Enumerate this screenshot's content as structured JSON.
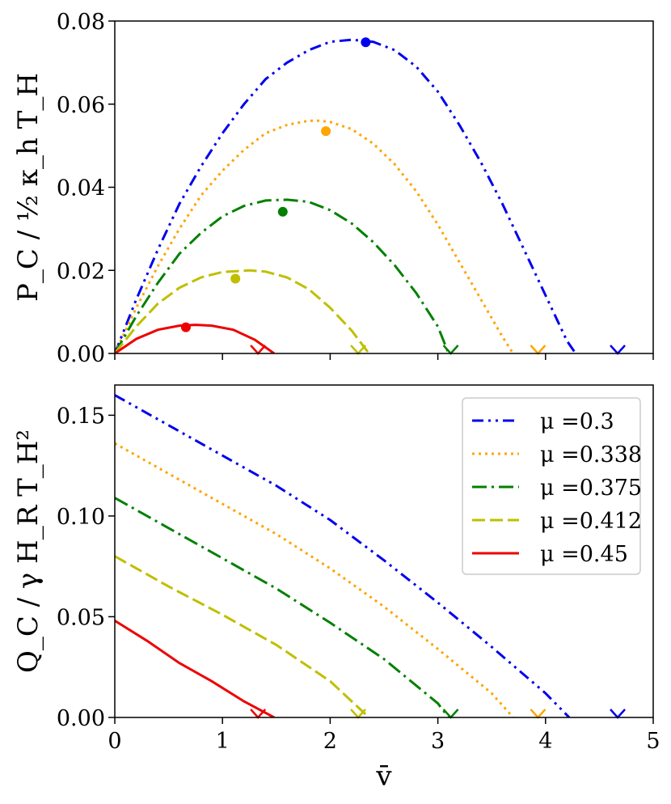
{
  "chart_data": [
    {
      "type": "line",
      "panel": "top",
      "ylabel": "P_C / ½ κ_h T_H",
      "xlabel": "",
      "xlim": [
        0,
        5
      ],
      "ylim": [
        0,
        0.08
      ],
      "yticks": [
        "0.00",
        "0.02",
        "0.04",
        "0.06",
        "0.08"
      ],
      "series": [
        {
          "name": "μ =0.3",
          "color": "#0000ee",
          "style": "dashdotdot",
          "x": [
            0,
            0.2,
            0.4,
            0.6,
            0.8,
            1.0,
            1.2,
            1.4,
            1.6,
            1.8,
            2.0,
            2.2,
            2.4,
            2.6,
            2.8,
            3.0,
            3.2,
            3.4,
            3.6,
            3.8,
            4.0,
            4.2,
            4.28
          ],
          "y": [
            0,
            0.013,
            0.025,
            0.036,
            0.045,
            0.053,
            0.06,
            0.066,
            0.07,
            0.073,
            0.075,
            0.0755,
            0.075,
            0.073,
            0.069,
            0.063,
            0.055,
            0.046,
            0.036,
            0.025,
            0.014,
            0.003,
            0
          ]
        },
        {
          "name": "μ =0.338",
          "color": "#ffa500",
          "style": "dotted",
          "x": [
            0,
            0.2,
            0.4,
            0.6,
            0.8,
            1.0,
            1.2,
            1.4,
            1.6,
            1.8,
            1.9,
            2.0,
            2.2,
            2.4,
            2.6,
            2.8,
            3.0,
            3.2,
            3.4,
            3.6,
            3.7
          ],
          "y": [
            0,
            0.011,
            0.021,
            0.03,
            0.038,
            0.044,
            0.049,
            0.053,
            0.055,
            0.056,
            0.056,
            0.0557,
            0.054,
            0.0505,
            0.0455,
            0.039,
            0.031,
            0.022,
            0.013,
            0.004,
            0
          ]
        },
        {
          "name": "μ =0.375",
          "color": "#008000",
          "style": "dashdot",
          "x": [
            0,
            0.2,
            0.4,
            0.6,
            0.8,
            1.0,
            1.2,
            1.4,
            1.6,
            1.8,
            2.0,
            2.2,
            2.4,
            2.6,
            2.8,
            3.0,
            3.1
          ],
          "y": [
            0,
            0.009,
            0.017,
            0.024,
            0.029,
            0.033,
            0.0355,
            0.0368,
            0.037,
            0.0365,
            0.0345,
            0.0313,
            0.0268,
            0.0212,
            0.0145,
            0.0065,
            0
          ]
        },
        {
          "name": "μ =0.412",
          "color": "#bfbf00",
          "style": "dashed",
          "x": [
            0,
            0.2,
            0.4,
            0.6,
            0.8,
            1.0,
            1.25,
            1.4,
            1.6,
            1.8,
            2.0,
            2.2,
            2.36
          ],
          "y": [
            0,
            0.0065,
            0.012,
            0.0158,
            0.0183,
            0.0196,
            0.02,
            0.0197,
            0.0183,
            0.0155,
            0.011,
            0.0055,
            0
          ]
        },
        {
          "name": "μ =0.45",
          "color": "#ee0000",
          "style": "solid",
          "x": [
            0,
            0.2,
            0.4,
            0.6,
            0.75,
            0.9,
            1.1,
            1.3,
            1.48
          ],
          "y": [
            0,
            0.0035,
            0.0057,
            0.0067,
            0.0069,
            0.0067,
            0.0057,
            0.0033,
            0
          ]
        }
      ],
      "optimum_points": [
        {
          "series": "μ =0.3",
          "x": 2.33,
          "y": 0.0749
        },
        {
          "series": "μ =0.338",
          "x": 1.96,
          "y": 0.0535
        },
        {
          "series": "μ =0.375",
          "x": 1.56,
          "y": 0.0341
        },
        {
          "series": "μ =0.412",
          "x": 1.12,
          "y": 0.018
        },
        {
          "series": "μ =0.45",
          "x": 0.66,
          "y": 0.0063
        }
      ],
      "limit_markers": [
        {
          "series": "μ =0.3",
          "x": 4.67,
          "y": 0
        },
        {
          "series": "μ =0.338",
          "x": 3.93,
          "y": 0
        },
        {
          "series": "μ =0.375",
          "x": 3.12,
          "y": 0
        },
        {
          "series": "μ =0.412",
          "x": 2.26,
          "y": 0
        },
        {
          "series": "μ =0.45",
          "x": 1.33,
          "y": 0
        }
      ]
    },
    {
      "type": "line",
      "panel": "bottom",
      "ylabel": "Q_C / γ H_R T_H²",
      "xlabel": "v̄",
      "xlim": [
        0,
        5
      ],
      "ylim": [
        0,
        0.165
      ],
      "xticks": [
        "0",
        "1",
        "2",
        "3",
        "4",
        "5"
      ],
      "yticks": [
        "0.00",
        "0.05",
        "0.10",
        "0.15"
      ],
      "legend_position": "upper-right",
      "series": [
        {
          "name": "μ =0.3",
          "color": "#0000ee",
          "style": "dashdotdot",
          "x": [
            0,
            0.5,
            1.0,
            1.5,
            2.0,
            2.5,
            3.0,
            3.5,
            4.0,
            4.22
          ],
          "y": [
            0.16,
            0.145,
            0.13,
            0.115,
            0.098,
            0.078,
            0.057,
            0.035,
            0.012,
            0
          ]
        },
        {
          "name": "μ =0.338",
          "color": "#ffa500",
          "style": "dotted",
          "x": [
            0,
            0.5,
            1.0,
            1.5,
            2.0,
            2.5,
            3.0,
            3.5,
            3.7
          ],
          "y": [
            0.136,
            0.121,
            0.106,
            0.091,
            0.074,
            0.055,
            0.034,
            0.012,
            0
          ]
        },
        {
          "name": "μ =0.375",
          "color": "#008000",
          "style": "dashdot",
          "x": [
            0,
            0.5,
            1.0,
            1.5,
            2.0,
            2.5,
            3.0,
            3.1
          ],
          "y": [
            0.109,
            0.094,
            0.079,
            0.064,
            0.047,
            0.029,
            0.007,
            0
          ]
        },
        {
          "name": "μ =0.412",
          "color": "#bfbf00",
          "style": "dashed",
          "x": [
            0,
            0.5,
            1.0,
            1.5,
            2.0,
            2.36
          ],
          "y": [
            0.08,
            0.065,
            0.051,
            0.036,
            0.018,
            0
          ]
        },
        {
          "name": "μ =0.45",
          "color": "#ee0000",
          "style": "solid",
          "x": [
            0,
            0.3,
            0.6,
            0.9,
            1.2,
            1.48
          ],
          "y": [
            0.048,
            0.038,
            0.027,
            0.018,
            0.008,
            0
          ]
        }
      ],
      "limit_markers": [
        {
          "series": "μ =0.3",
          "x": 4.67,
          "y": 0
        },
        {
          "series": "μ =0.338",
          "x": 3.93,
          "y": 0
        },
        {
          "series": "μ =0.375",
          "x": 3.12,
          "y": 0
        },
        {
          "series": "μ =0.412",
          "x": 2.26,
          "y": 0
        },
        {
          "series": "μ =0.45",
          "x": 1.33,
          "y": 0
        }
      ]
    }
  ]
}
